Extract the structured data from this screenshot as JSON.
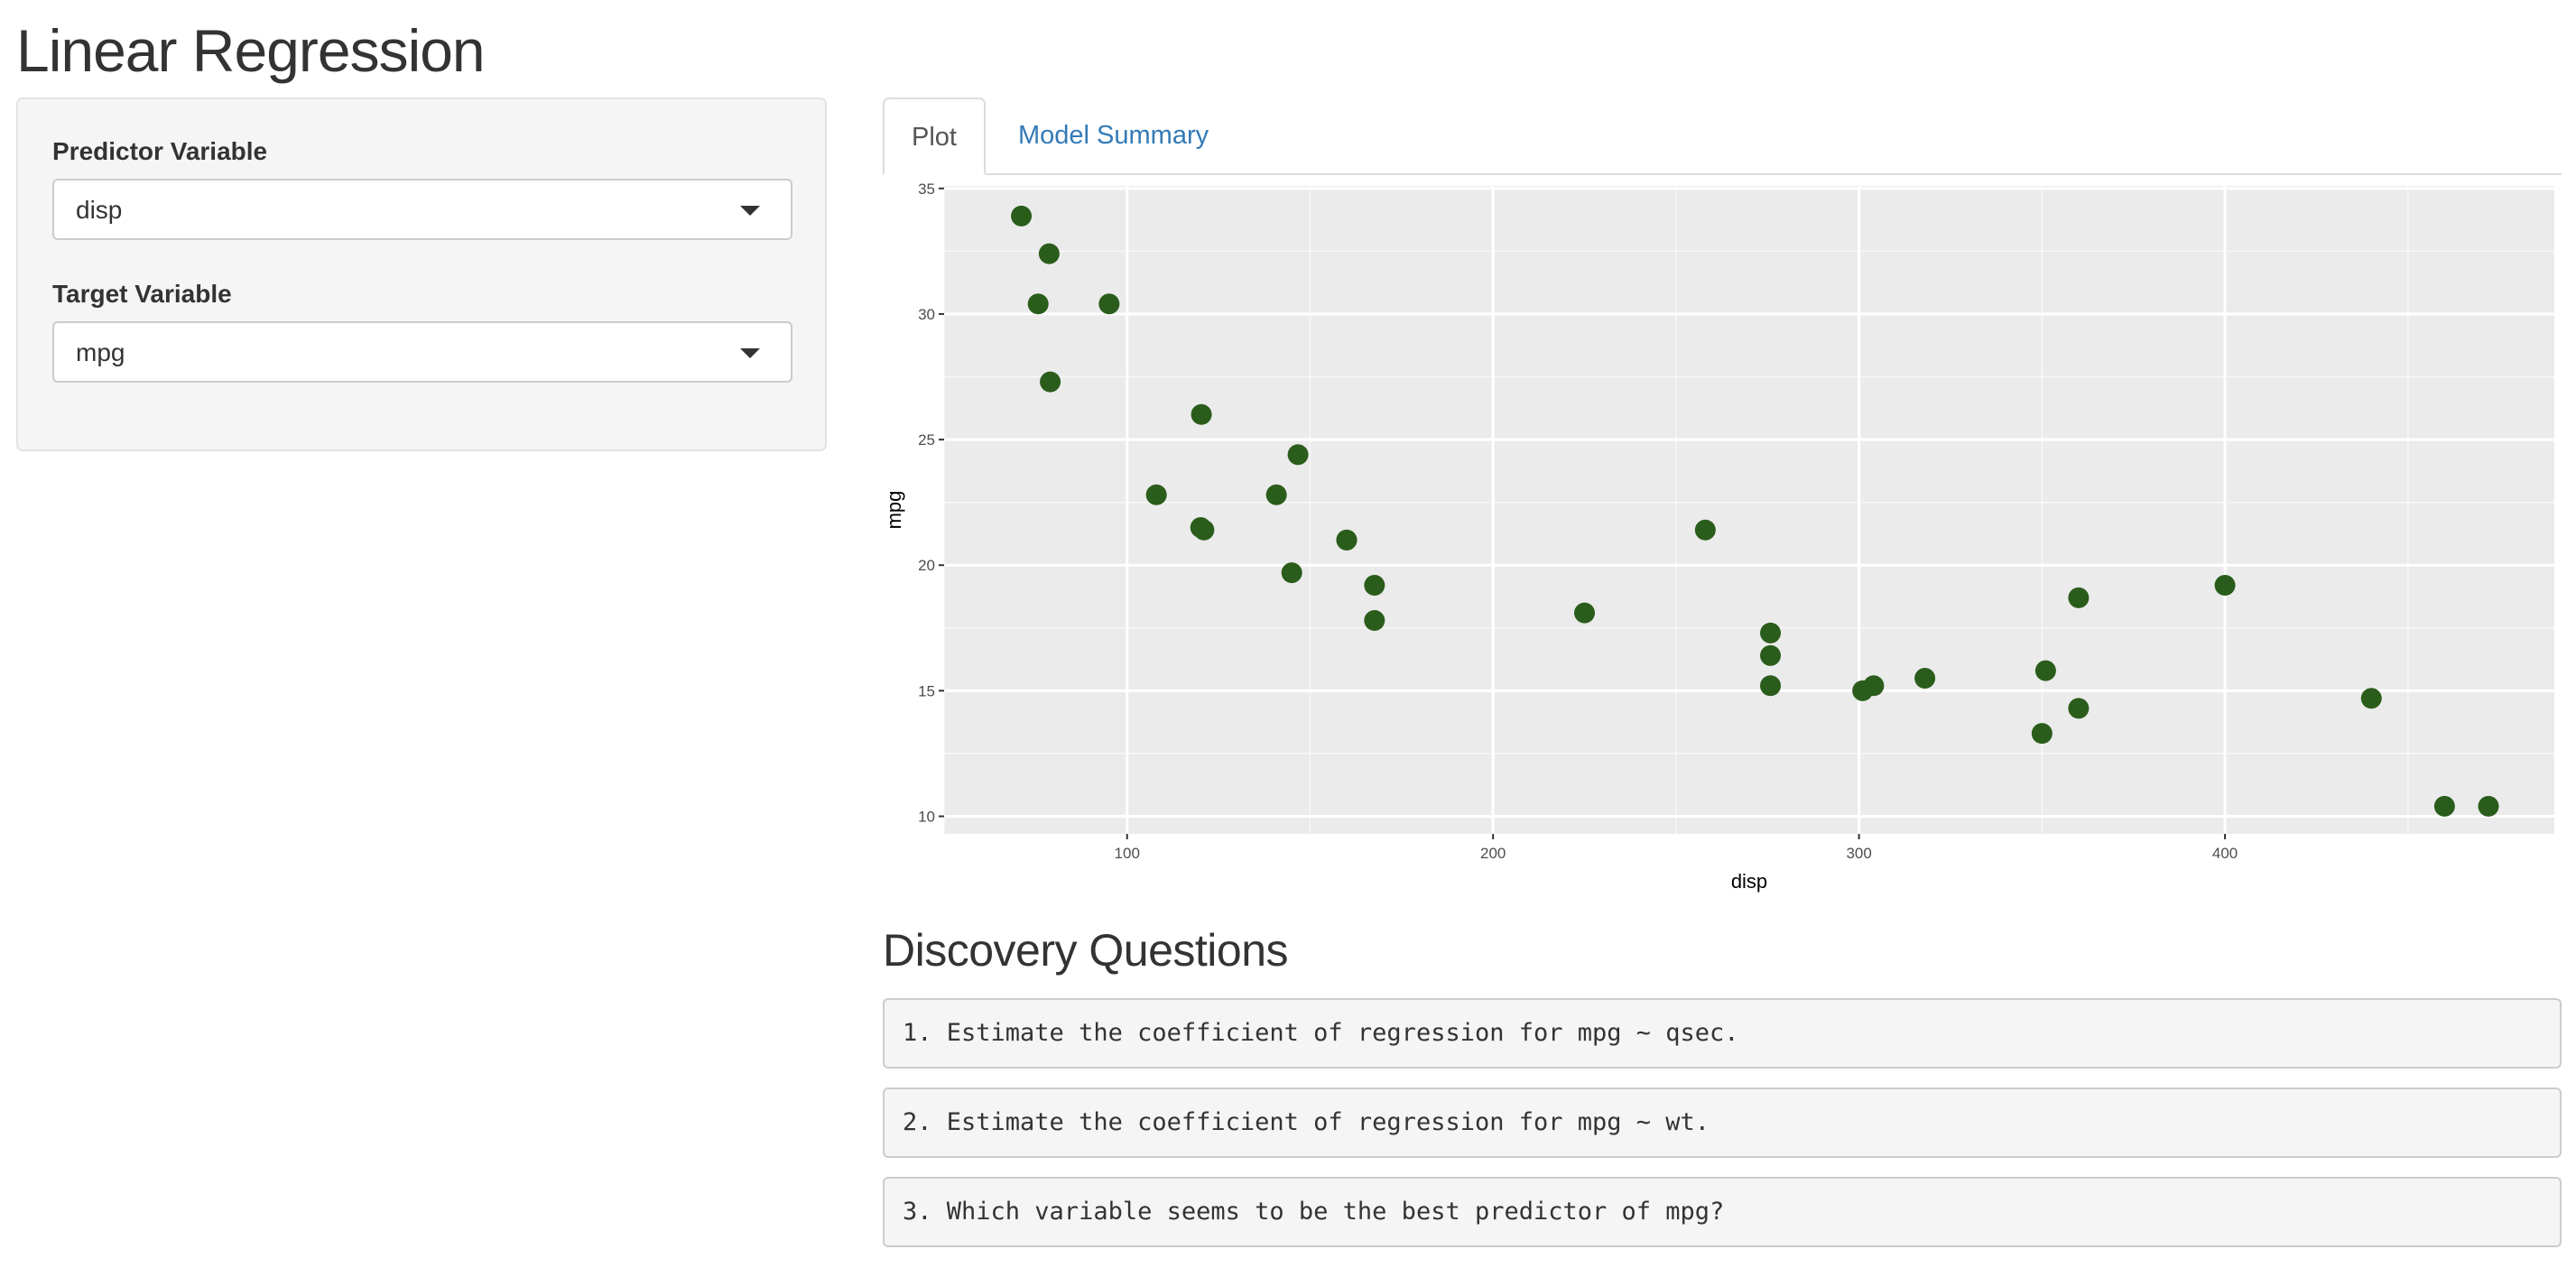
{
  "app": {
    "title": "Linear Regression"
  },
  "sidebar": {
    "predictor": {
      "label": "Predictor Variable",
      "value": "disp"
    },
    "target": {
      "label": "Target Variable",
      "value": "mpg"
    }
  },
  "tabs": [
    {
      "label": "Plot",
      "active": true
    },
    {
      "label": "Model Summary",
      "active": false
    }
  ],
  "colors": {
    "point": "#2a5d1b",
    "panel_bg": "#ebebeb",
    "grid": "#ffffff",
    "tab_link": "#337ab7"
  },
  "chart_data": {
    "type": "scatter",
    "xlabel": "disp",
    "ylabel": "mpg",
    "xlim": [
      50,
      490
    ],
    "ylim": [
      9.3,
      35.1
    ],
    "xticks": [
      100,
      200,
      300,
      400
    ],
    "yticks": [
      10,
      15,
      20,
      25,
      30,
      35
    ],
    "grid": true,
    "legend": "none",
    "points": [
      {
        "x": 160,
        "y": 21.0
      },
      {
        "x": 160,
        "y": 21.0
      },
      {
        "x": 108,
        "y": 22.8
      },
      {
        "x": 258,
        "y": 21.4
      },
      {
        "x": 360,
        "y": 18.7
      },
      {
        "x": 225,
        "y": 18.1
      },
      {
        "x": 360,
        "y": 14.3
      },
      {
        "x": 146.7,
        "y": 24.4
      },
      {
        "x": 140.8,
        "y": 22.8
      },
      {
        "x": 167.6,
        "y": 19.2
      },
      {
        "x": 167.6,
        "y": 17.8
      },
      {
        "x": 275.8,
        "y": 16.4
      },
      {
        "x": 275.8,
        "y": 17.3
      },
      {
        "x": 275.8,
        "y": 15.2
      },
      {
        "x": 472,
        "y": 10.4
      },
      {
        "x": 460,
        "y": 10.4
      },
      {
        "x": 440,
        "y": 14.7
      },
      {
        "x": 78.7,
        "y": 32.4
      },
      {
        "x": 75.7,
        "y": 30.4
      },
      {
        "x": 71.1,
        "y": 33.9
      },
      {
        "x": 120.1,
        "y": 21.5
      },
      {
        "x": 318,
        "y": 15.5
      },
      {
        "x": 304,
        "y": 15.2
      },
      {
        "x": 350,
        "y": 13.3
      },
      {
        "x": 400,
        "y": 19.2
      },
      {
        "x": 79,
        "y": 27.3
      },
      {
        "x": 120.3,
        "y": 26.0
      },
      {
        "x": 95.1,
        "y": 30.4
      },
      {
        "x": 351,
        "y": 15.8
      },
      {
        "x": 145,
        "y": 19.7
      },
      {
        "x": 301,
        "y": 15.0
      },
      {
        "x": 121,
        "y": 21.4
      }
    ]
  },
  "discovery": {
    "title": "Discovery Questions",
    "questions": [
      "1. Estimate the coefficient of regression for mpg ~ qsec.",
      "2. Estimate the coefficient of regression for mpg ~ wt.",
      "3. Which variable seems to be the best predictor of mpg?"
    ]
  }
}
